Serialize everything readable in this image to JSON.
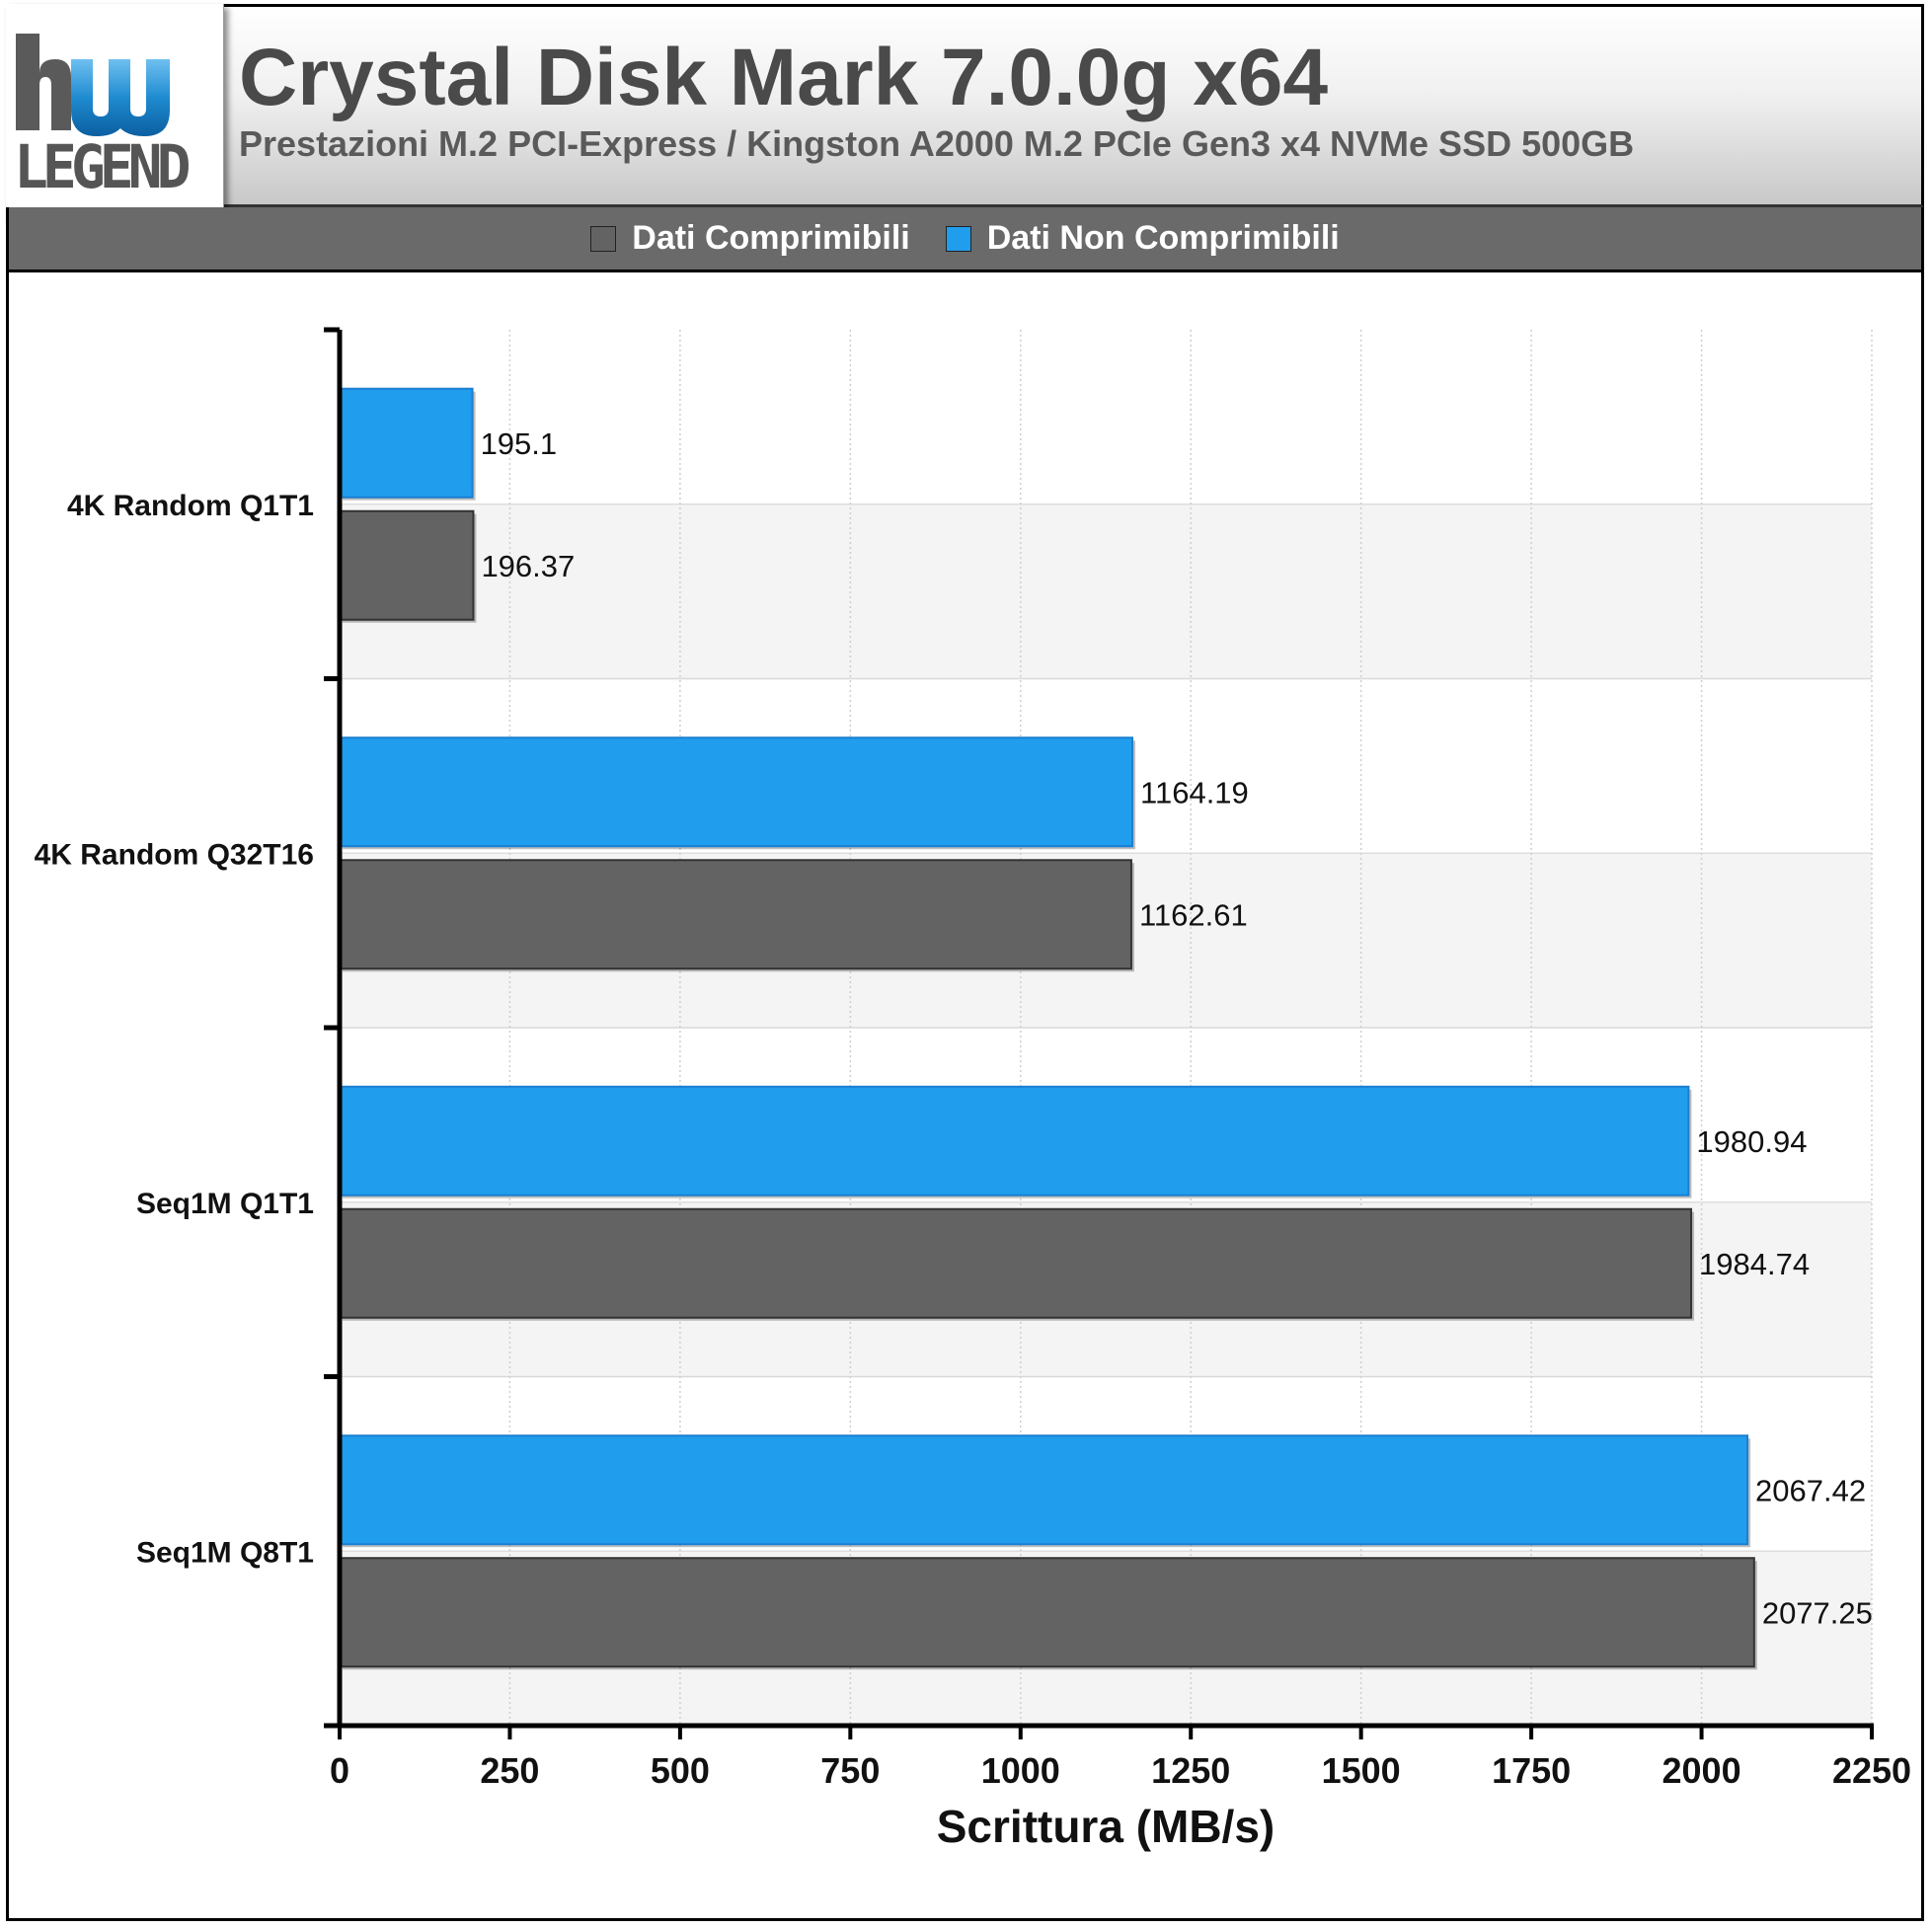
{
  "header": {
    "logo_text_top": "hw",
    "logo_text_bottom": "LEGEND",
    "title": "Crystal Disk Mark 7.0.0g x64",
    "subtitle": "Prestazioni M.2 PCI-Express / Kingston A2000 M.2 PCIe Gen3 x4 NVMe SSD 500GB"
  },
  "colors": {
    "compressible": "#636363",
    "non_compressible": "#219ded",
    "non_compressible_border": "#1a7fd0",
    "band_light": "#ffffff",
    "band_alt": "#f4f4f4",
    "grid": "#cfcfcf"
  },
  "chart_data": {
    "type": "bar",
    "orientation": "horizontal",
    "categories": [
      "4K Random Q1T1",
      "4K Random Q32T16",
      "Seq1M Q1T1",
      "Seq1M Q8T1"
    ],
    "series": [
      {
        "name": "Dati Non Comprimibili",
        "color": "#219ded",
        "values": [
          195.1,
          1164.19,
          1980.94,
          2067.42
        ],
        "labels": [
          "195.1",
          "1164.19",
          "1980.94",
          "2067.42"
        ]
      },
      {
        "name": "Dati Comprimibili",
        "color": "#636363",
        "values": [
          196.37,
          1162.61,
          1984.74,
          2077.25
        ],
        "labels": [
          "196.37",
          "1162.61",
          "1984.74",
          "2077.25"
        ]
      }
    ],
    "legend": [
      {
        "name": "Dati Comprimibili",
        "color": "#636363"
      },
      {
        "name": "Dati Non Comprimibili",
        "color": "#219ded"
      }
    ],
    "legend_position": "top",
    "xlabel": "Scrittura (MB/s)",
    "xlim": [
      0,
      2250
    ],
    "xticks": [
      0,
      250,
      500,
      750,
      1000,
      1250,
      1500,
      1750,
      2000,
      2250
    ],
    "grid": true
  }
}
